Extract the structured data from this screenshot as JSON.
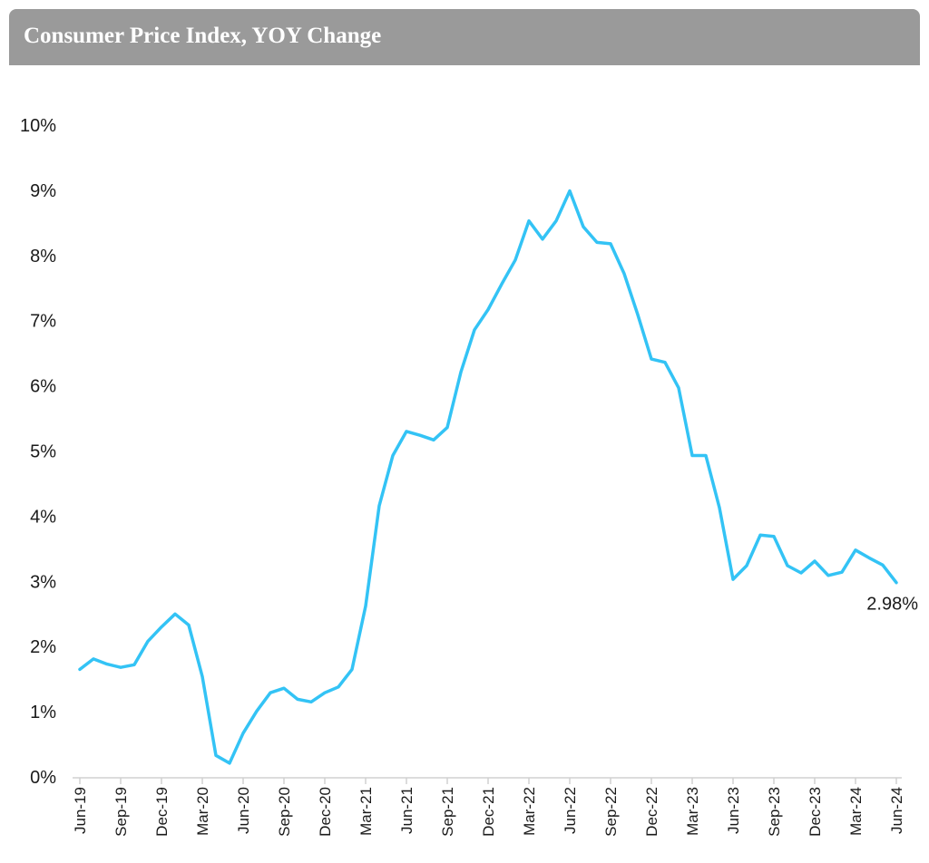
{
  "header": {
    "title": "Consumer Price Index, YOY Change"
  },
  "chart_data": {
    "type": "line",
    "title": "Consumer Price Index, YOY Change",
    "xlabel": "",
    "ylabel": "",
    "ylim": [
      0,
      10
    ],
    "y_ticks": [
      "0%",
      "1%",
      "2%",
      "3%",
      "4%",
      "5%",
      "6%",
      "7%",
      "8%",
      "9%",
      "10%"
    ],
    "x_tick_labels": [
      "Jun-19",
      "Sep-19",
      "Dec-19",
      "Mar-20",
      "Jun-20",
      "Sep-20",
      "Dec-20",
      "Mar-21",
      "Jun-21",
      "Sep-21",
      "Dec-21",
      "Mar-22",
      "Jun-22",
      "Sep-22",
      "Dec-22",
      "Mar-23",
      "Jun-23",
      "Sep-23",
      "Dec-23",
      "Mar-24",
      "Jun-24"
    ],
    "x_tick_step": 3,
    "grid": false,
    "line_color": "#33c3f5",
    "series": [
      {
        "name": "CPI YOY Change",
        "values": [
          1.65,
          1.81,
          1.73,
          1.68,
          1.72,
          2.08,
          2.3,
          2.5,
          2.33,
          1.54,
          0.33,
          0.21,
          0.67,
          1.01,
          1.29,
          1.36,
          1.19,
          1.15,
          1.29,
          1.38,
          1.65,
          2.62,
          4.16,
          4.93,
          5.3,
          5.24,
          5.17,
          5.36,
          6.21,
          6.86,
          7.17,
          7.56,
          7.93,
          8.53,
          8.25,
          8.53,
          8.99,
          8.44,
          8.2,
          8.18,
          7.72,
          7.09,
          6.41,
          6.36,
          5.97,
          4.93,
          4.93,
          4.13,
          3.03,
          3.24,
          3.71,
          3.69,
          3.24,
          3.13,
          3.31,
          3.09,
          3.14,
          3.48,
          3.36,
          3.25,
          2.98
        ]
      }
    ],
    "annotation": {
      "label": "2.98%",
      "value": 2.98
    }
  }
}
